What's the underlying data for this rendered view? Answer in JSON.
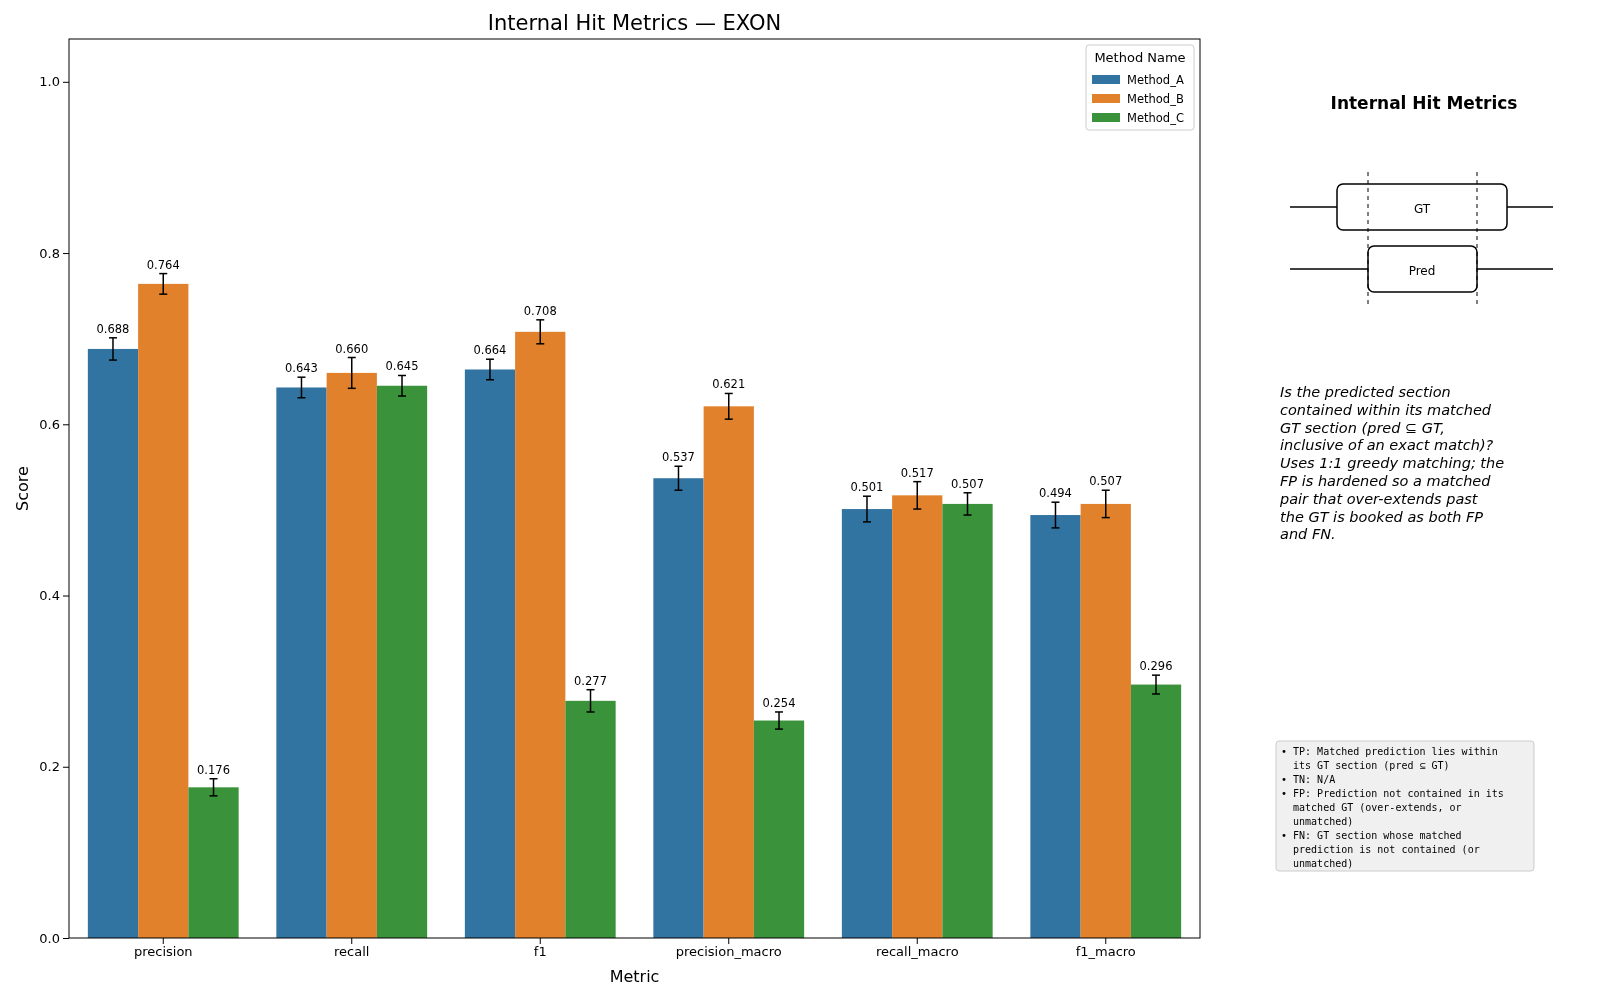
{
  "chart_data": {
    "type": "bar",
    "title": "Internal Hit Metrics — EXON",
    "xlabel": "Metric",
    "ylabel": "Score",
    "legend_title": "Method Name",
    "categories": [
      "precision",
      "recall",
      "f1",
      "precision_macro",
      "recall_macro",
      "f1_macro"
    ],
    "series": [
      {
        "name": "Method_A",
        "color": "#3274a1",
        "values": [
          0.688,
          0.643,
          0.664,
          0.537,
          0.501,
          0.494
        ],
        "errors": [
          0.013,
          0.012,
          0.012,
          0.014,
          0.015,
          0.015
        ],
        "value_labels": [
          "0.688",
          "0.643",
          "0.664",
          "0.537",
          "0.501",
          "0.494"
        ]
      },
      {
        "name": "Method_B",
        "color": "#e1812c",
        "values": [
          0.764,
          0.66,
          0.708,
          0.621,
          0.517,
          0.507
        ],
        "errors": [
          0.012,
          0.018,
          0.014,
          0.015,
          0.016,
          0.016
        ],
        "value_labels": [
          "0.764",
          "0.660",
          "0.708",
          "0.621",
          "0.517",
          "0.507"
        ]
      },
      {
        "name": "Method_C",
        "color": "#3a923a",
        "values": [
          0.176,
          0.645,
          0.277,
          0.254,
          0.507,
          0.296
        ],
        "errors": [
          0.01,
          0.012,
          0.013,
          0.01,
          0.013,
          0.011
        ],
        "value_labels": [
          "0.176",
          "0.645",
          "0.277",
          "0.254",
          "0.507",
          "0.296"
        ]
      }
    ],
    "ylim": [
      0,
      1.05
    ],
    "yticks": [
      {
        "value": 0,
        "label": "0.0"
      },
      {
        "value": 0.2,
        "label": "0.2"
      },
      {
        "value": 0.4,
        "label": "0.4"
      },
      {
        "value": 0.6,
        "label": "0.6"
      },
      {
        "value": 0.8,
        "label": "0.8"
      },
      {
        "value": 1,
        "label": "1.0"
      }
    ],
    "legend": "top right",
    "grid": false,
    "annotations": [
      "Internal Hit Metrics",
      "Is the predicted section\ncontained within its matched\nGT section (pred ⊆ GT,\ninclusive of an exact match)?\nUses 1:1 greedy matching; the\nFP is hardened so a matched\npair that over-extends past\nthe GT is booked as both FP\nand FN.",
      "• TP: Matched prediction lies within\n  its GT section (pred ⊆ GT)\n• TN: N/A\n• FP: Prediction not contained in its\n  matched GT (over-extends, or\n  unmatched)\n• FN: GT section whose matched\n  prediction is not contained (or\n  unmatched)",
      "GT",
      "Pred"
    ]
  }
}
